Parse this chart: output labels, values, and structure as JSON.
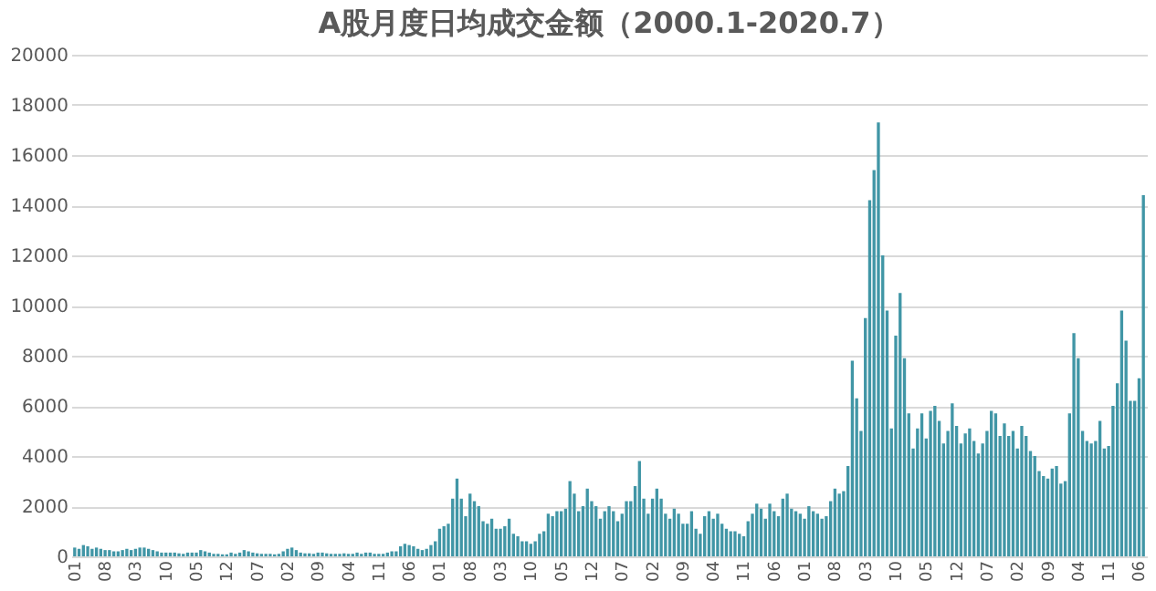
{
  "chart_data": {
    "type": "bar",
    "title": "A股月度日均成交金额（2000.1-2020.7）",
    "categories": [
      "01",
      null,
      null,
      null,
      null,
      null,
      null,
      "08",
      null,
      null,
      null,
      null,
      null,
      null,
      "03",
      null,
      null,
      null,
      null,
      null,
      null,
      "10",
      null,
      null,
      null,
      null,
      null,
      null,
      "05",
      null,
      null,
      null,
      null,
      null,
      null,
      "12",
      null,
      null,
      null,
      null,
      null,
      null,
      "07",
      null,
      null,
      null,
      null,
      null,
      null,
      "02",
      null,
      null,
      null,
      null,
      null,
      null,
      "09",
      null,
      null,
      null,
      null,
      null,
      null,
      "04",
      null,
      null,
      null,
      null,
      null,
      null,
      "11",
      null,
      null,
      null,
      null,
      null,
      null,
      "06",
      null,
      null,
      null,
      null,
      null,
      null,
      "01",
      null,
      null,
      null,
      null,
      null,
      null,
      "08",
      null,
      null,
      null,
      null,
      null,
      null,
      "03",
      null,
      null,
      null,
      null,
      null,
      null,
      "10",
      null,
      null,
      null,
      null,
      null,
      null,
      "05",
      null,
      null,
      null,
      null,
      null,
      null,
      "12",
      null,
      null,
      null,
      null,
      null,
      null,
      "07",
      null,
      null,
      null,
      null,
      null,
      null,
      "02",
      null,
      null,
      null,
      null,
      null,
      null,
      "09",
      null,
      null,
      null,
      null,
      null,
      null,
      "04",
      null,
      null,
      null,
      null,
      null,
      null,
      "11",
      null,
      null,
      null,
      null,
      null,
      null,
      "06",
      null,
      null,
      null,
      null,
      null,
      null,
      "01",
      null,
      null,
      null,
      null,
      null,
      null,
      "08",
      null,
      null,
      null,
      null,
      null,
      null,
      "03",
      null,
      null,
      null,
      null,
      null,
      null,
      "10",
      null,
      null,
      null,
      null,
      null,
      null,
      "05",
      null,
      null,
      null,
      null,
      null,
      null,
      "12",
      null,
      null,
      null,
      null,
      null,
      null,
      "07",
      null,
      null,
      null,
      null,
      null,
      null,
      "02",
      null,
      null,
      null,
      null,
      null,
      null,
      "09",
      null,
      null,
      null,
      null,
      null,
      null,
      "04",
      null,
      null,
      null,
      null,
      null,
      null,
      "11",
      null,
      null,
      null,
      null,
      null,
      null,
      "06",
      null
    ],
    "values": [
      350,
      300,
      450,
      400,
      300,
      350,
      300,
      250,
      250,
      200,
      200,
      250,
      300,
      250,
      300,
      350,
      350,
      300,
      250,
      200,
      150,
      150,
      150,
      150,
      120,
      100,
      150,
      150,
      150,
      250,
      200,
      150,
      100,
      100,
      80,
      80,
      150,
      100,
      150,
      250,
      200,
      150,
      120,
      100,
      100,
      100,
      80,
      100,
      200,
      300,
      350,
      250,
      150,
      120,
      120,
      100,
      150,
      150,
      120,
      100,
      100,
      100,
      120,
      100,
      100,
      150,
      100,
      150,
      150,
      100,
      100,
      100,
      150,
      200,
      200,
      400,
      500,
      450,
      400,
      300,
      250,
      300,
      450,
      600,
      1100,
      1200,
      1300,
      2300,
      3100,
      2300,
      1600,
      2500,
      2200,
      2000,
      1400,
      1300,
      1500,
      1100,
      1100,
      1200,
      1500,
      900,
      800,
      600,
      600,
      500,
      600,
      900,
      1000,
      1700,
      1600,
      1800,
      1800,
      1900,
      3000,
      2500,
      1800,
      2000,
      2700,
      2200,
      2000,
      1500,
      1800,
      2000,
      1800,
      1400,
      1700,
      2200,
      2200,
      2800,
      3800,
      2300,
      1700,
      2300,
      2700,
      2300,
      1700,
      1500,
      1900,
      1700,
      1300,
      1300,
      1800,
      1100,
      900,
      1600,
      1800,
      1500,
      1700,
      1300,
      1100,
      1000,
      1000,
      900,
      800,
      1400,
      1700,
      2100,
      1900,
      1500,
      2100,
      1800,
      1600,
      2300,
      2500,
      1900,
      1800,
      1700,
      1500,
      2000,
      1800,
      1700,
      1500,
      1600,
      2200,
      2700,
      2500,
      2600,
      3600,
      7800,
      6300,
      5000,
      9500,
      14200,
      15400,
      17300,
      12000,
      9800,
      5100,
      8800,
      10500,
      7900,
      5700,
      4300,
      5100,
      5700,
      4700,
      5800,
      6000,
      5400,
      4500,
      5000,
      6100,
      5200,
      4500,
      4900,
      5100,
      4600,
      4100,
      4500,
      5000,
      5800,
      5700,
      4800,
      5300,
      4800,
      5000,
      4300,
      5200,
      4800,
      4200,
      4000,
      3400,
      3200,
      3100,
      3500,
      3600,
      2900,
      3000,
      5700,
      8900,
      7900,
      5000,
      4600,
      4500,
      4600,
      5400,
      4300,
      4400,
      6000,
      6900,
      9800,
      8600,
      6200,
      6200,
      7100,
      14400
    ],
    "color": "#4196a6",
    "ylim": [
      0,
      20000
    ],
    "yticks": [
      0,
      2000,
      4000,
      6000,
      8000,
      10000,
      12000,
      14000,
      16000,
      18000,
      20000
    ],
    "grid": "y"
  }
}
